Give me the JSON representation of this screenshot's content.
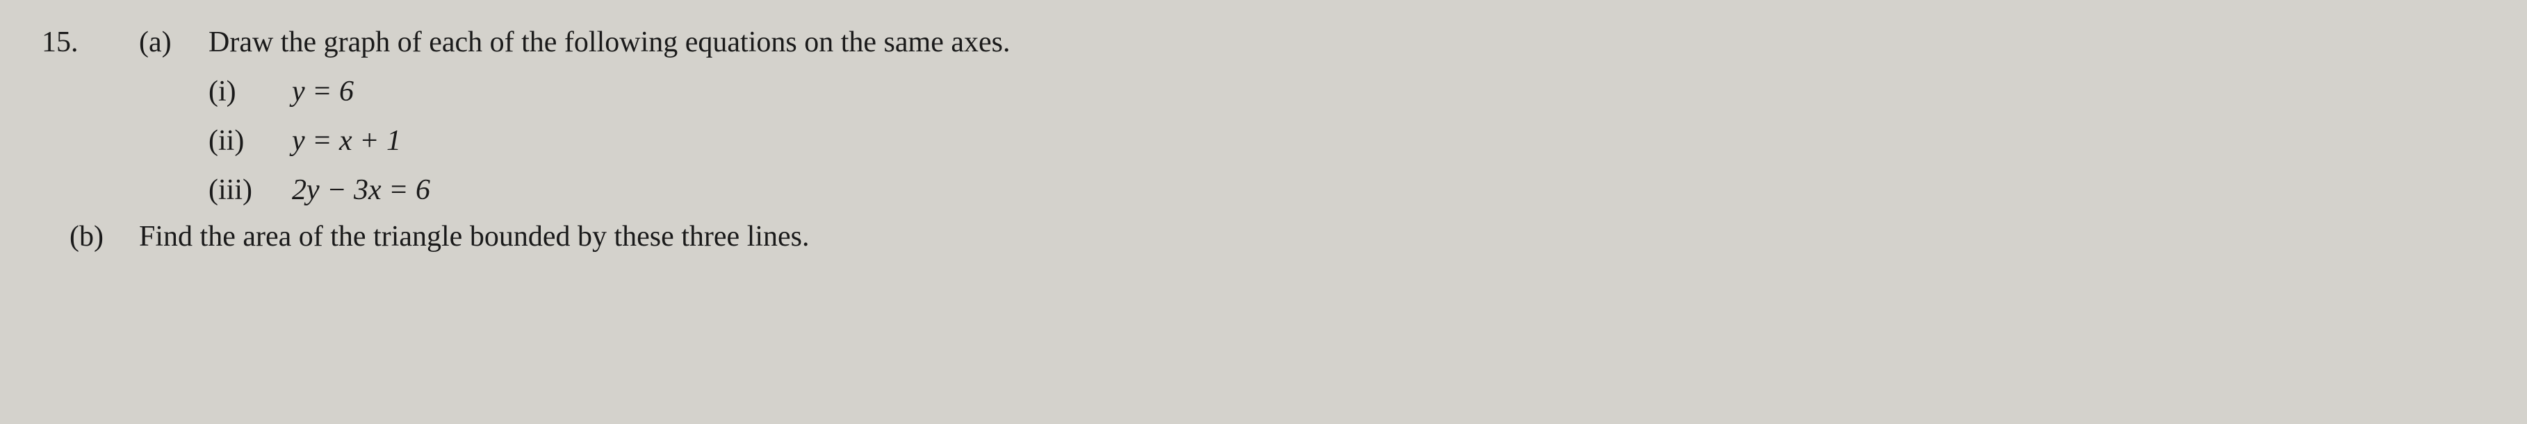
{
  "problem": {
    "number": "15.",
    "parts": {
      "a": {
        "label": "(a)",
        "instruction": "Draw the graph of each of the following equations on the same axes.",
        "subparts": [
          {
            "label": "(i)",
            "equation": "y = 6"
          },
          {
            "label": "(ii)",
            "equation": "y = x + 1"
          },
          {
            "label": "(iii)",
            "equation": "2y − 3x = 6"
          }
        ]
      },
      "b": {
        "label": "(b)",
        "instruction": "Find the area of the triangle bounded by these three lines."
      }
    }
  },
  "styling": {
    "background_color": "#d4d2cc",
    "text_color": "#1a1a1a",
    "font_family": "Times New Roman",
    "font_size_pt": 32,
    "font_style_equation": "italic"
  }
}
